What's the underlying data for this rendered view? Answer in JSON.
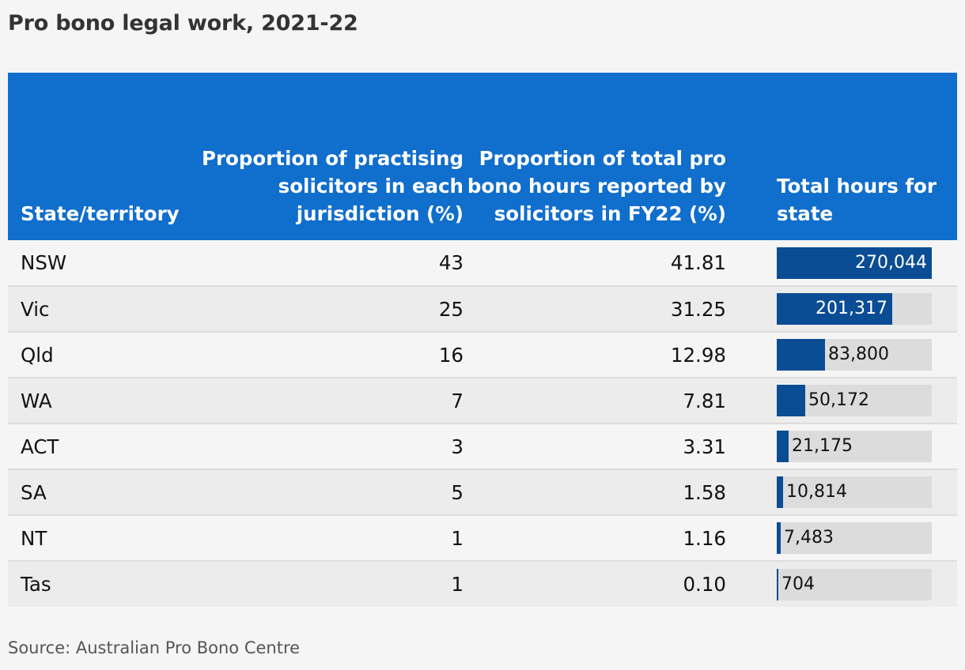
{
  "title": "Pro bono legal work, 2021-22",
  "source": "Source: Australian Pro Bono Centre",
  "colors": {
    "header_background": "#106ecc",
    "bar_fill": "#0b4d94",
    "bar_track": "#dcdcdc"
  },
  "chart_data": {
    "type": "table",
    "title": "Pro bono legal work, 2021-22",
    "columns": [
      "State/territory",
      "Proportion of practising solicitors in each jurisdiction (%)",
      "Proportion of total pro bono hours reported by solicitors in FY22 (%)",
      "Total hours for state"
    ],
    "bar_max": 270044,
    "rows": [
      {
        "state": "NSW",
        "prop": "43",
        "share": "41.81",
        "hours": 270044,
        "hours_label": "270,044"
      },
      {
        "state": "Vic",
        "prop": "25",
        "share": "31.25",
        "hours": 201317,
        "hours_label": "201,317"
      },
      {
        "state": "Qld",
        "prop": "16",
        "share": "12.98",
        "hours": 83800,
        "hours_label": "83,800"
      },
      {
        "state": "WA",
        "prop": "7",
        "share": "7.81",
        "hours": 50172,
        "hours_label": "50,172"
      },
      {
        "state": "ACT",
        "prop": "3",
        "share": "3.31",
        "hours": 21175,
        "hours_label": "21,175"
      },
      {
        "state": "SA",
        "prop": "5",
        "share": "1.58",
        "hours": 10814,
        "hours_label": "10,814"
      },
      {
        "state": "NT",
        "prop": "1",
        "share": "1.16",
        "hours": 7483,
        "hours_label": "7,483"
      },
      {
        "state": "Tas",
        "prop": "1",
        "share": "0.10",
        "hours": 704,
        "hours_label": "704"
      }
    ]
  }
}
